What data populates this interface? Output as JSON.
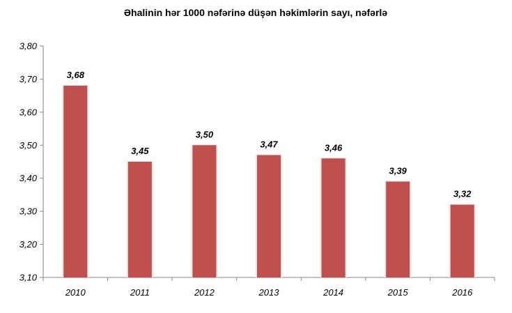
{
  "chart_data": {
    "type": "bar",
    "title": "Əhalinin hər 1000 nəfərinə düşən  həkimlərin sayı, nəfərlə",
    "categories": [
      "2010",
      "2011",
      "2012",
      "2013",
      "2014",
      "2015",
      "2016"
    ],
    "values": [
      3.68,
      3.45,
      3.5,
      3.47,
      3.46,
      3.39,
      3.32
    ],
    "data_labels": [
      "3,68",
      "3,45",
      "3,50",
      "3,47",
      "3,46",
      "3,39",
      "3,32"
    ],
    "ylim": [
      3.1,
      3.8
    ],
    "yticks": [
      "3,10",
      "3,20",
      "3,30",
      "3,40",
      "3,50",
      "3,60",
      "3,70",
      "3,80"
    ],
    "xlabel": "",
    "ylabel": "",
    "grid": false,
    "legend": "none",
    "bar_color": "#c0504d"
  }
}
